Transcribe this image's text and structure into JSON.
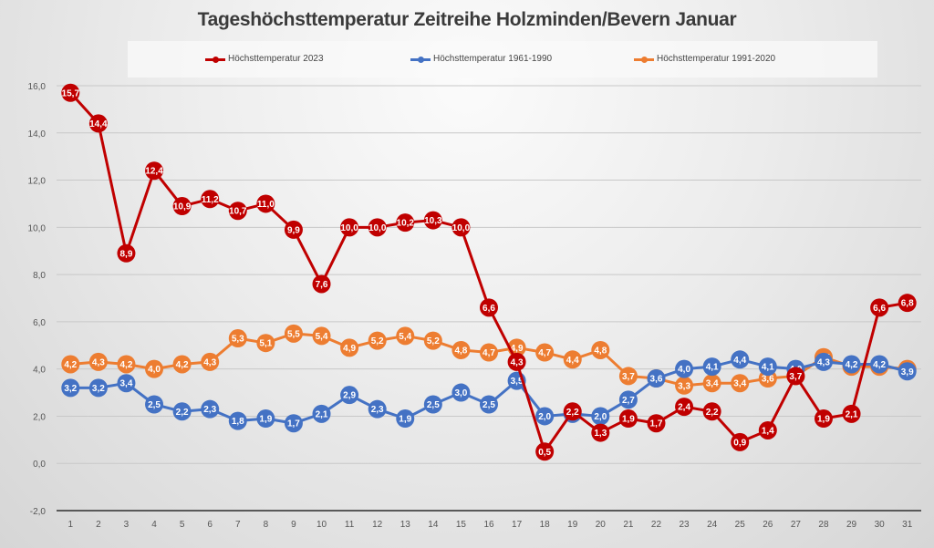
{
  "chart_data": {
    "type": "line",
    "title": "Tageshöchsttemperatur Zeitreihe Holzminden/Bevern Januar",
    "xlabel": "",
    "ylabel": "",
    "ylim": [
      -2,
      16
    ],
    "yticks": [
      -2,
      0,
      2,
      4,
      6,
      8,
      10,
      12,
      14,
      16
    ],
    "ytick_labels": [
      "-2,0",
      "0,0",
      "2,0",
      "4,0",
      "6,0",
      "8,0",
      "10,0",
      "12,0",
      "14,0",
      "16,0"
    ],
    "grid": true,
    "legend_position": "top",
    "x": [
      1,
      2,
      3,
      4,
      5,
      6,
      7,
      8,
      9,
      10,
      11,
      12,
      13,
      14,
      15,
      16,
      17,
      18,
      19,
      20,
      21,
      22,
      23,
      24,
      25,
      26,
      27,
      28,
      29,
      30,
      31
    ],
    "x_labels": [
      "1",
      "2",
      "3",
      "4",
      "5",
      "6",
      "7",
      "8",
      "9",
      "10",
      "11",
      "12",
      "13",
      "14",
      "15",
      "16",
      "17",
      "18",
      "19",
      "20",
      "21",
      "22",
      "23",
      "24",
      "25",
      "26",
      "27",
      "28",
      "29",
      "30",
      "31"
    ],
    "series": [
      {
        "name": "Höchsttemperatur 1991-2020",
        "color": "#ed7d31",
        "values": [
          4.2,
          4.3,
          4.2,
          4.0,
          4.2,
          4.3,
          5.3,
          5.1,
          5.5,
          5.4,
          4.9,
          5.2,
          5.4,
          5.2,
          4.8,
          4.7,
          4.9,
          4.7,
          4.4,
          4.8,
          3.7,
          3.6,
          3.3,
          3.4,
          3.4,
          3.6,
          3.7,
          4.5,
          4.1,
          4.1,
          4.0
        ]
      },
      {
        "name": "Höchsttemperatur 1961-1990",
        "color": "#4472c4",
        "values": [
          3.2,
          3.2,
          3.4,
          2.5,
          2.2,
          2.3,
          1.8,
          1.9,
          1.7,
          2.1,
          2.9,
          2.3,
          1.9,
          2.5,
          3.0,
          2.5,
          3.5,
          2.0,
          2.1,
          2.0,
          2.7,
          3.6,
          4.0,
          4.1,
          4.4,
          4.1,
          4.0,
          4.3,
          4.2,
          4.2,
          3.9
        ]
      },
      {
        "name": "Höchsttemperatur 2023",
        "color": "#c00000",
        "values": [
          15.7,
          14.4,
          8.9,
          12.4,
          10.9,
          11.2,
          10.7,
          11.0,
          9.9,
          7.6,
          10.0,
          10.0,
          10.2,
          10.3,
          10.0,
          6.6,
          4.3,
          0.5,
          2.2,
          1.3,
          1.9,
          1.7,
          2.4,
          2.2,
          0.9,
          1.4,
          3.7,
          1.9,
          2.1,
          6.6,
          6.8
        ]
      }
    ]
  },
  "legend": {
    "items": [
      {
        "label": "Höchsttemperatur 2023",
        "color": "#c00000"
      },
      {
        "label": "Höchsttemperatur 1961-1990",
        "color": "#4472c4"
      },
      {
        "label": "Höchsttemperatur 1991-2020",
        "color": "#ed7d31"
      }
    ]
  }
}
